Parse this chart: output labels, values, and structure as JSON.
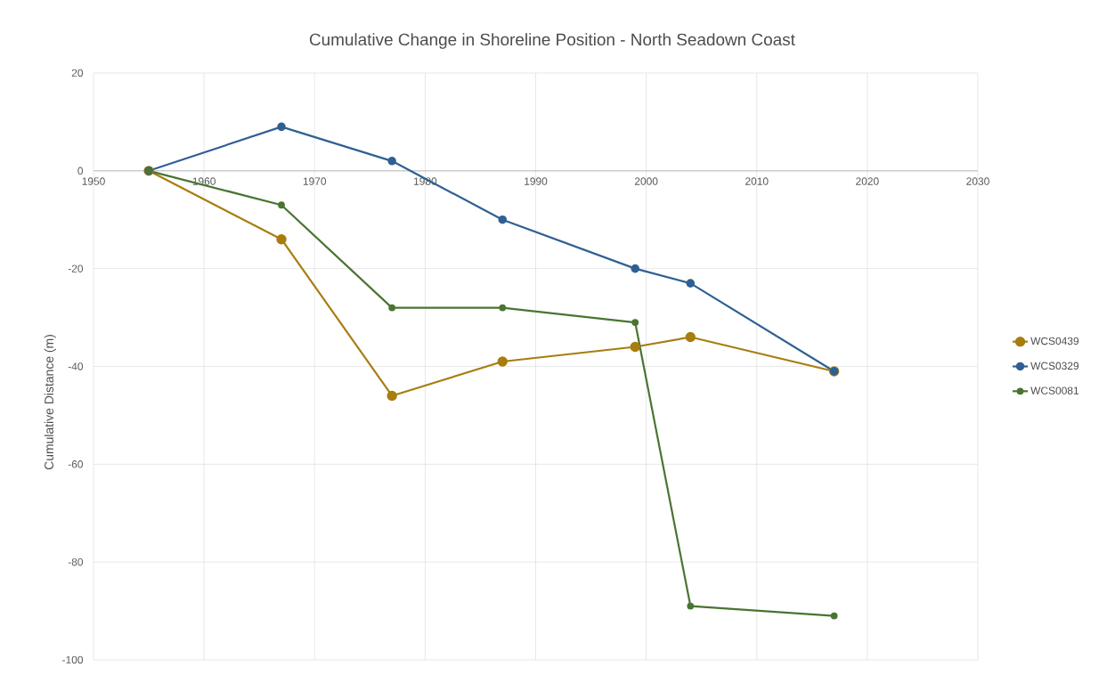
{
  "chart_data": {
    "type": "line",
    "title": "Cumulative Change in Shoreline Position - North Seadown Coast",
    "ylabel": "Cumulative Distance (m)",
    "x": [
      1955,
      1967,
      1977,
      1987,
      1999,
      2004,
      2017
    ],
    "series": [
      {
        "name": "WCS0439",
        "color": "#a77d0d",
        "values": [
          0,
          -14,
          -46,
          -39,
          -36,
          -34,
          -41
        ]
      },
      {
        "name": "WCS0329",
        "color": "#2f6093",
        "values": [
          0,
          9,
          2,
          -10,
          -20,
          -23,
          -41
        ]
      },
      {
        "name": "WCS0081",
        "color": "#4a7432",
        "values": [
          0,
          -7,
          -28,
          -28,
          -31,
          -89,
          -91
        ]
      }
    ],
    "xlim": [
      1950,
      2030
    ],
    "xticks": [
      1950,
      1960,
      1970,
      1980,
      1990,
      2000,
      2010,
      2020,
      2030
    ],
    "ylim": [
      -100,
      20
    ],
    "yticks": [
      -100,
      -80,
      -60,
      -40,
      -20,
      0,
      20
    ],
    "grid": true,
    "legend": "right",
    "marker": "circle",
    "line_style": "solid"
  }
}
